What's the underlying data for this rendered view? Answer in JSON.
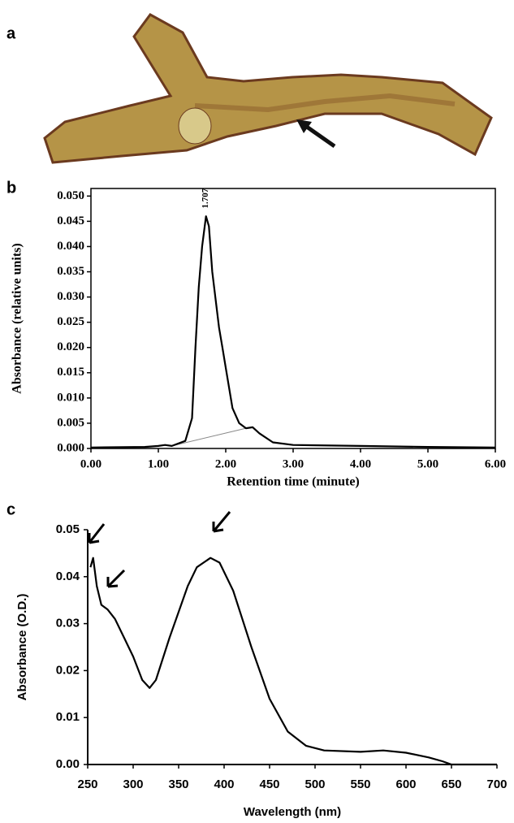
{
  "panel_labels": [
    "a",
    "b",
    "c"
  ],
  "chart_data": [
    {
      "type": "line",
      "xlabel": "Retention time (minute)",
      "ylabel": "Absorbance (relative units)",
      "x": [
        0,
        0.8,
        1.0,
        1.1,
        1.2,
        1.4,
        1.5,
        1.55,
        1.6,
        1.65,
        1.707,
        1.75,
        1.8,
        1.9,
        1.95,
        2.0,
        2.1,
        2.2,
        2.3,
        2.4,
        2.5,
        2.7,
        3.0,
        4.0,
        5.0,
        6.0
      ],
      "values": [
        0.0002,
        0.0003,
        0.0005,
        0.0007,
        0.0005,
        0.0015,
        0.006,
        0.02,
        0.032,
        0.04,
        0.046,
        0.044,
        0.035,
        0.024,
        0.02,
        0.016,
        0.008,
        0.005,
        0.004,
        0.0042,
        0.003,
        0.0012,
        0.0007,
        0.0005,
        0.0003,
        0.0002
      ],
      "color": "#000000",
      "baseline": {
        "x": [
          1.2,
          2.3
        ],
        "values": [
          0.0005,
          0.004
        ],
        "color": "#888888"
      },
      "annotations": [
        {
          "text": "1.707",
          "x": 1.707,
          "y": 0.046
        }
      ],
      "xlim": [
        0,
        6
      ],
      "ylim": [
        0,
        0.0515
      ],
      "xticks": [
        {
          "value": 0,
          "label": "0.00"
        },
        {
          "value": 1,
          "label": "1.00"
        },
        {
          "value": 2,
          "label": "2.00"
        },
        {
          "value": 3,
          "label": "3.00"
        },
        {
          "value": 4,
          "label": "4.00"
        },
        {
          "value": 5,
          "label": "5.00"
        },
        {
          "value": 6,
          "label": "6.00"
        }
      ],
      "yticks": [
        {
          "value": 0,
          "label": "0.000"
        },
        {
          "value": 0.005,
          "label": "0.005"
        },
        {
          "value": 0.01,
          "label": "0.010"
        },
        {
          "value": 0.015,
          "label": "0.015"
        },
        {
          "value": 0.02,
          "label": "0.020"
        },
        {
          "value": 0.025,
          "label": "0.025"
        },
        {
          "value": 0.03,
          "label": "0.030"
        },
        {
          "value": 0.035,
          "label": "0.035"
        },
        {
          "value": 0.04,
          "label": "0.040"
        },
        {
          "value": 0.045,
          "label": "0.045"
        },
        {
          "value": 0.05,
          "label": "0.050"
        }
      ],
      "frame": true
    },
    {
      "type": "line",
      "xlabel": "Wavelength (nm)",
      "ylabel": "Absorbance (O.D.)",
      "x": [
        253,
        256,
        260,
        265,
        272,
        280,
        290,
        300,
        310,
        318,
        325,
        340,
        360,
        370,
        385,
        395,
        410,
        430,
        450,
        470,
        490,
        510,
        550,
        575,
        600,
        625,
        640,
        650,
        660,
        700
      ],
      "values": [
        0.042,
        0.044,
        0.038,
        0.034,
        0.033,
        0.031,
        0.027,
        0.023,
        0.018,
        0.0163,
        0.018,
        0.027,
        0.038,
        0.042,
        0.044,
        0.043,
        0.037,
        0.025,
        0.014,
        0.007,
        0.004,
        0.003,
        0.0027,
        0.003,
        0.0025,
        0.0015,
        0.0007,
        0,
        0,
        0
      ],
      "color": "#000000",
      "xlim": [
        250,
        700
      ],
      "ylim": [
        0,
        0.05
      ],
      "xticks": [
        250,
        300,
        350,
        400,
        450,
        500,
        550,
        600,
        650,
        700
      ],
      "yticks": [
        {
          "value": 0,
          "label": "0.00"
        },
        {
          "value": 0.01,
          "label": "0.01"
        },
        {
          "value": 0.02,
          "label": "0.02"
        },
        {
          "value": 0.03,
          "label": "0.03"
        },
        {
          "value": 0.04,
          "label": "0.04"
        },
        {
          "value": 0.05,
          "label": "0.05"
        }
      ],
      "frame": false
    }
  ]
}
